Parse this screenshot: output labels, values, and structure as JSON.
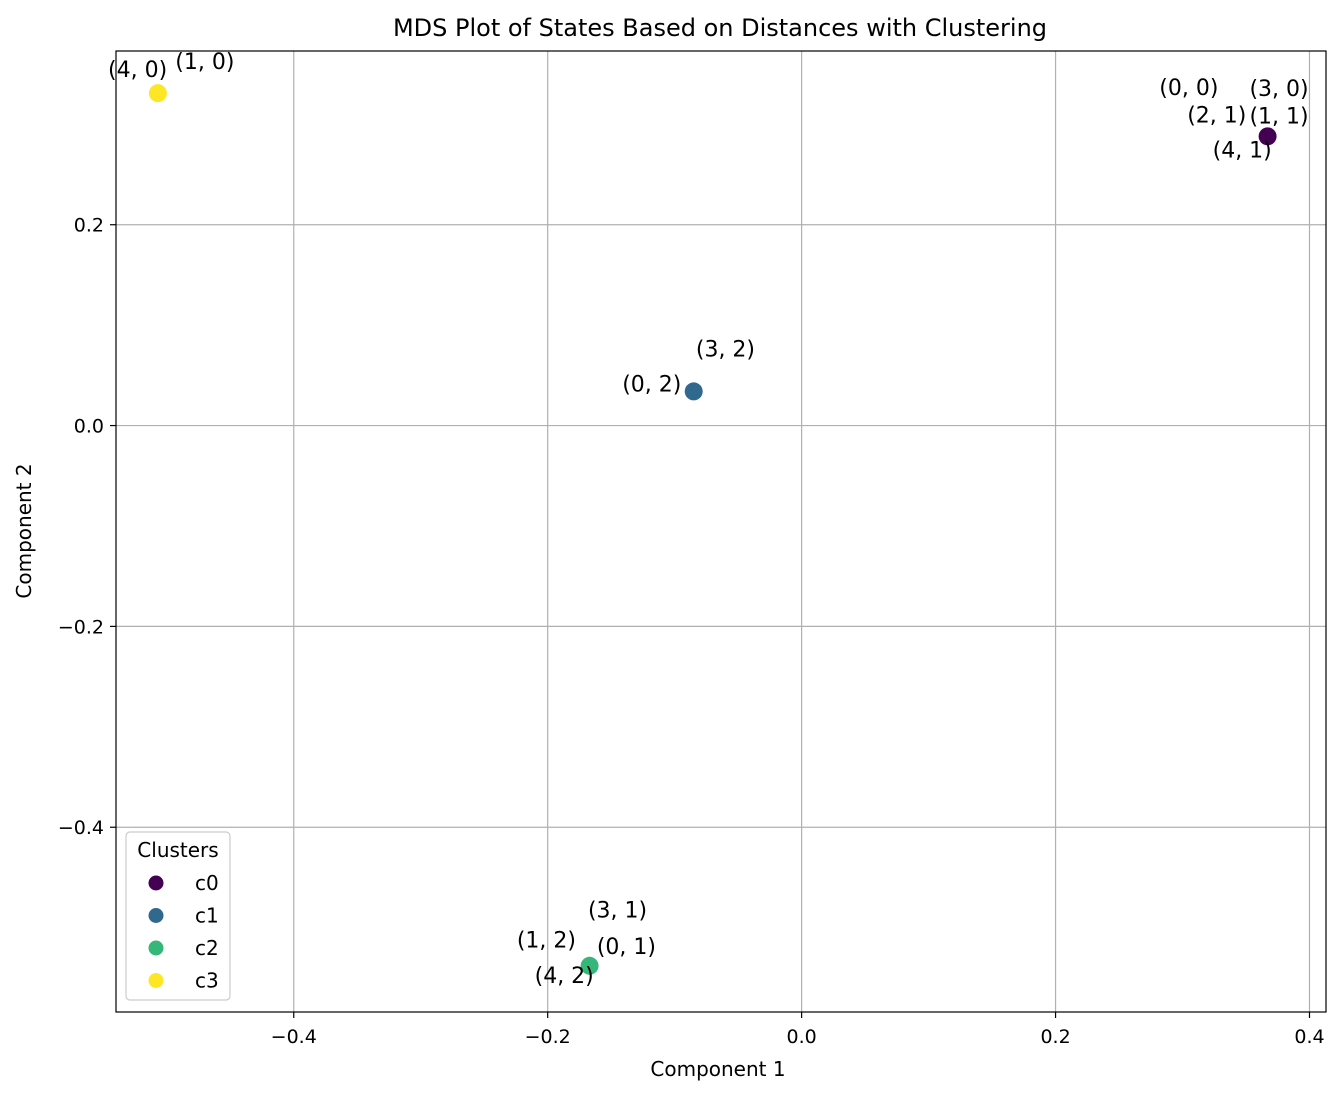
{
  "chart_data": {
    "type": "scatter",
    "title": "MDS Plot of States Based on Distances with Clustering",
    "xlabel": "Component 1",
    "ylabel": "Component 2",
    "xlim": [
      -0.54,
      0.413
    ],
    "ylim": [
      -0.584,
      0.373
    ],
    "xticks": [
      -0.4,
      -0.2,
      0.0,
      0.2,
      0.4
    ],
    "xtick_labels": [
      "−0.4",
      "−0.2",
      "0.0",
      "0.2",
      "0.4"
    ],
    "yticks": [
      -0.4,
      -0.2,
      0.0,
      0.2
    ],
    "ytick_labels": [
      "−0.4",
      "−0.2",
      "0.0",
      "0.2"
    ],
    "grid": true,
    "legend": {
      "title": "Clusters",
      "placement": "lower-left"
    },
    "clusters": [
      {
        "name": "c0",
        "color": "#440154"
      },
      {
        "name": "c1",
        "color": "#31688e"
      },
      {
        "name": "c2",
        "color": "#35b779"
      },
      {
        "name": "c3",
        "color": "#fde725"
      }
    ],
    "points": [
      {
        "x": 0.367,
        "y": 0.288,
        "cluster": "c0"
      },
      {
        "x": -0.085,
        "y": 0.034,
        "cluster": "c1"
      },
      {
        "x": -0.167,
        "y": -0.538,
        "cluster": "c2"
      },
      {
        "x": -0.507,
        "y": 0.331,
        "cluster": "c3"
      }
    ],
    "point_labels": [
      {
        "text": "(0, 0)",
        "x": 0.305,
        "y": 0.329
      },
      {
        "text": "(3, 0)",
        "x": 0.376,
        "y": 0.328
      },
      {
        "text": "(2, 1)",
        "x": 0.327,
        "y": 0.302
      },
      {
        "text": "(1, 1)",
        "x": 0.376,
        "y": 0.301
      },
      {
        "text": "(4, 1)",
        "x": 0.347,
        "y": 0.267
      },
      {
        "text": "(3, 2)",
        "x": -0.06,
        "y": 0.069
      },
      {
        "text": "(0, 2)",
        "x": -0.118,
        "y": 0.034
      },
      {
        "text": "(3, 1)",
        "x": -0.145,
        "y": -0.49
      },
      {
        "text": "(1, 2)",
        "x": -0.201,
        "y": -0.52
      },
      {
        "text": "(0, 1)",
        "x": -0.138,
        "y": -0.526
      },
      {
        "text": "(4, 2)",
        "x": -0.187,
        "y": -0.555
      },
      {
        "text": "(4, 0)",
        "x": -0.523,
        "y": 0.347
      },
      {
        "text": "(1, 0)",
        "x": -0.47,
        "y": 0.355
      }
    ]
  }
}
